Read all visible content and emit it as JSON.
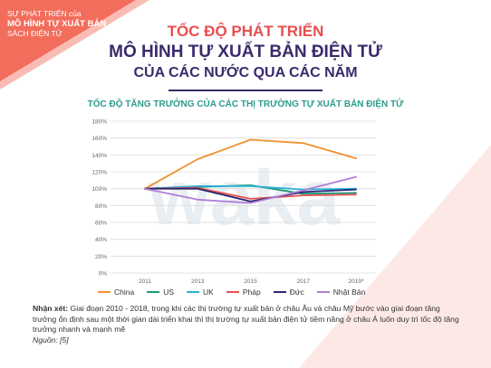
{
  "header": {
    "series_line1": "SỰ PHÁT TRIỂN của",
    "series_line2": "MÔ HÌNH TỰ XUẤT BẢN",
    "series_line3": "SÁCH ĐIỆN TỬ",
    "title_line1": "TỐC ĐỘ PHÁT TRIỂN",
    "title_line2": "MÔ HÌNH TỰ XUẤT BẢN ĐIỆN TỬ",
    "title_line3": "CỦA CÁC NƯỚC QUA CÁC NĂM"
  },
  "watermark": "waka",
  "note": {
    "label": "Nhận xét:",
    "text": " Giai đoạn 2010 - 2018, trong khi các thị trường tự xuất bản ở châu Âu và châu Mỹ bước vào giai đoạn tăng trưởng ổn định sau một thời gian dài triển khai thì thị trường tự xuất bản điện tử tiềm năng ở châu Á luôn duy trì tốc độ tăng trưởng nhanh và mạnh mẽ",
    "source": "Nguồn: [5]"
  },
  "colors": {
    "corner": "#f26d5b",
    "title_red": "#e84e4e",
    "title_purple": "#3b2a6b",
    "chart_title": "#2e9b8a"
  },
  "chart_data": {
    "type": "line",
    "title": "TỐC ĐỘ TĂNG TRƯỞNG CỦA CÁC THỊ TRƯỜNG TỰ XUẤT BẢN ĐIỆN TỬ",
    "x": [
      "2011",
      "2013",
      "2015",
      "2017",
      "2019*"
    ],
    "ylim": [
      0,
      180
    ],
    "yticks": [
      0,
      20,
      40,
      60,
      80,
      100,
      120,
      140,
      160,
      180
    ],
    "ytick_labels": [
      "0%",
      "20%",
      "40%",
      "60%",
      "80%",
      "100%",
      "120%",
      "140%",
      "160%",
      "180%"
    ],
    "grid": true,
    "legend_position": "bottom",
    "series": [
      {
        "name": "China",
        "color": "#f0912e",
        "values": [
          100,
          135,
          158,
          154,
          136
        ]
      },
      {
        "name": "US",
        "color": "#1a9a7a",
        "values": [
          100,
          102,
          104,
          94,
          95
        ]
      },
      {
        "name": "UK",
        "color": "#2bb0d6",
        "values": [
          100,
          103,
          103,
          99,
          100
        ]
      },
      {
        "name": "Pháp",
        "color": "#e8514e",
        "values": [
          100,
          101,
          88,
          92,
          93
        ]
      },
      {
        "name": "Đức",
        "color": "#2a2570",
        "values": [
          100,
          100,
          85,
          96,
          99
        ]
      },
      {
        "name": "Nhật Bản",
        "color": "#b07fd6",
        "values": [
          100,
          87,
          83,
          98,
          114
        ]
      }
    ]
  }
}
